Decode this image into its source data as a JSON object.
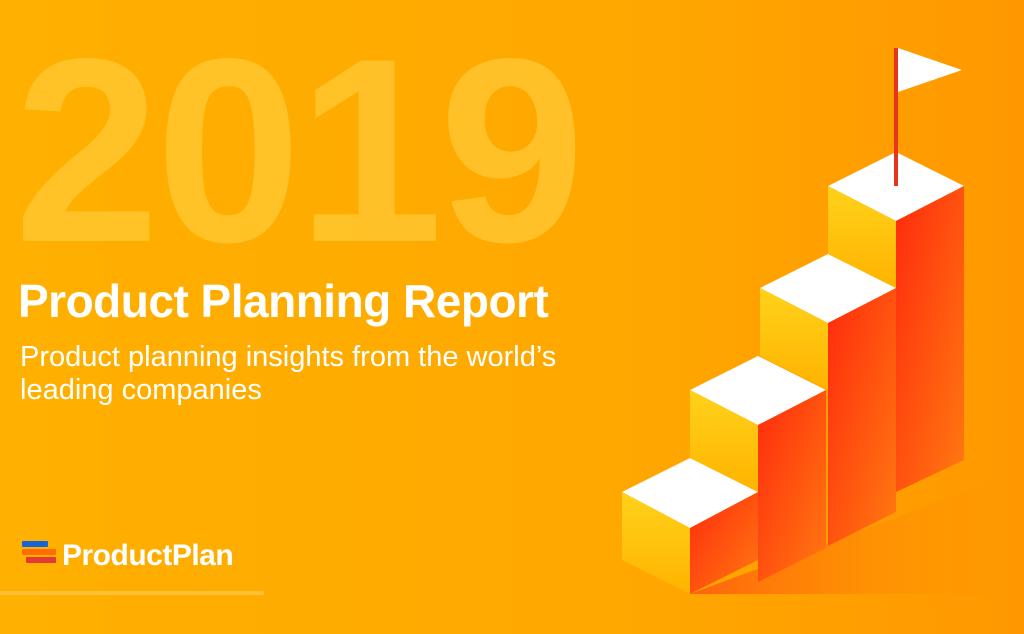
{
  "hero": {
    "year": "2019",
    "title": "Product Planning Report",
    "subtitle": "Product planning insights from the world’s leading companies"
  },
  "brand": {
    "name": "ProductPlan",
    "mark_colors": [
      "#1565d8",
      "#ff6d00",
      "#e53935"
    ]
  },
  "colors": {
    "background": "#ffa800",
    "year_overlay": "#ffc62e",
    "step_top": "#ffffff",
    "step_front": "#ffcc00",
    "step_side": "#ff3b10",
    "flag": "#ffffff",
    "flag_pole": "#e8341c"
  }
}
